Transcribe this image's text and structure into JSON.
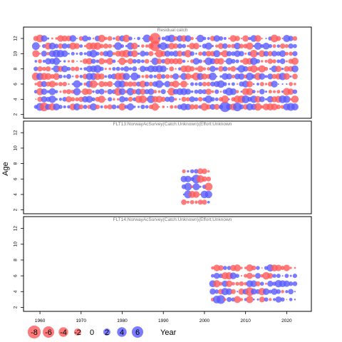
{
  "chart_data": {
    "type": "scatter",
    "subtype": "bubble-residuals",
    "ylabel": "Age",
    "xlabel": "Year",
    "xlim": [
      1956,
      2026
    ],
    "ylim": [
      1.5,
      13.5
    ],
    "x_ticks": [
      1960,
      1970,
      1980,
      1990,
      2000,
      2010,
      2020
    ],
    "y_ticks": [
      2,
      4,
      6,
      8,
      10,
      12
    ],
    "colors": {
      "positive": "#5a5aff",
      "negative": "#ff5a5a"
    },
    "panels": [
      {
        "title": "Residual catch",
        "years": [
          1959,
          2022
        ],
        "ages": [
          3,
          12
        ],
        "highlights": [
          {
            "x": 1988,
            "y": 12,
            "value": -7
          },
          {
            "x": 1988,
            "y": 11,
            "value": -6
          },
          {
            "x": 2005,
            "y": 3,
            "value": 6
          },
          {
            "x": 2008,
            "y": 3,
            "value": 4
          },
          {
            "x": 1961,
            "y": 3,
            "value": -4
          },
          {
            "x": 1959,
            "y": 11,
            "value": 3
          }
        ]
      },
      {
        "title": "FLT13:NorwayAcSurvey(Catch:Unknown)(Effort:Unknown",
        "years": [
          1995,
          2001
        ],
        "ages": [
          3,
          7
        ],
        "highlights": [
          {
            "x": 1998,
            "y": 6,
            "value": 4
          },
          {
            "x": 1996,
            "y": 5,
            "value": 3
          }
        ]
      },
      {
        "title": "FLT14:NorwayAcSurvey(Catch:Unknown)(Effort:Unknown",
        "years": [
          2002,
          2022
        ],
        "ages": [
          3,
          7
        ],
        "highlights": [
          {
            "x": 2011,
            "y": 4,
            "value": -4
          },
          {
            "x": 2004,
            "y": 3,
            "value": 4
          }
        ]
      }
    ],
    "legend": [
      -8,
      -6,
      -4,
      -2,
      0,
      2,
      4,
      6
    ]
  }
}
